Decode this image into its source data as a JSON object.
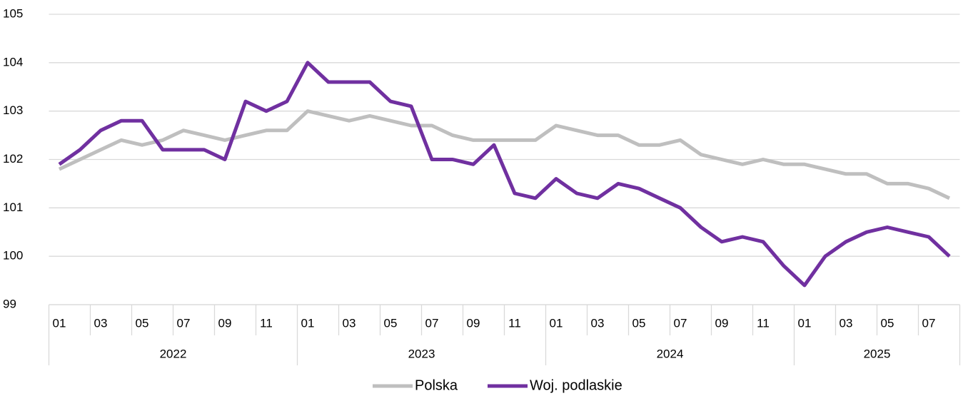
{
  "chart_data": {
    "type": "line",
    "categories": [
      "01",
      null,
      "03",
      null,
      "05",
      null,
      "07",
      null,
      "09",
      null,
      "11",
      null,
      "01",
      null,
      "03",
      null,
      "05",
      null,
      "07",
      null,
      "09",
      null,
      "11",
      null,
      "01",
      null,
      "03",
      null,
      "05",
      null,
      "07",
      null,
      "09",
      null,
      "11",
      null,
      "01",
      null,
      "03",
      null,
      "05",
      null,
      "07",
      null
    ],
    "years": [
      "2022",
      "2023",
      "2024",
      "2025"
    ],
    "series": [
      {
        "name": "Polska",
        "color": "#bfbfbf",
        "values": [
          101.8,
          102.0,
          102.2,
          102.4,
          102.3,
          102.4,
          102.6,
          102.5,
          102.4,
          102.5,
          102.6,
          102.6,
          103.0,
          102.9,
          102.8,
          102.9,
          102.8,
          102.7,
          102.7,
          102.5,
          102.4,
          102.4,
          102.4,
          102.4,
          102.7,
          102.6,
          102.5,
          102.5,
          102.3,
          102.3,
          102.4,
          102.1,
          102.0,
          101.9,
          102.0,
          101.9,
          101.9,
          101.8,
          101.7,
          101.7,
          101.5,
          101.5,
          101.4,
          101.2
        ]
      },
      {
        "name": "Woj. podlaskie",
        "color": "#7030a0",
        "values": [
          101.9,
          102.2,
          102.6,
          102.8,
          102.8,
          102.2,
          102.2,
          102.2,
          102.0,
          103.2,
          103.0,
          103.2,
          104.0,
          103.6,
          103.6,
          103.6,
          103.2,
          103.1,
          102.0,
          102.0,
          101.9,
          102.3,
          101.3,
          101.2,
          101.6,
          101.3,
          101.2,
          101.5,
          101.4,
          101.2,
          101.0,
          100.6,
          100.3,
          100.4,
          100.3,
          99.8,
          99.4,
          100.0,
          100.3,
          100.5,
          100.6,
          100.5,
          100.4,
          100.0
        ]
      }
    ],
    "ylim": [
      99,
      105
    ],
    "yticks": [
      99,
      100,
      101,
      102,
      103,
      104,
      105
    ],
    "grid": true,
    "legend": "bottom"
  }
}
